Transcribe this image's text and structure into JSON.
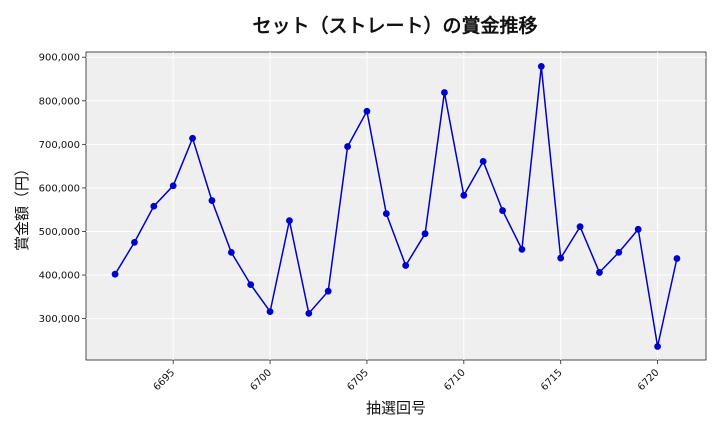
{
  "chart_data": {
    "type": "line",
    "title": "セット（ストレート）の賞金推移",
    "xlabel": "抽選回号",
    "ylabel": "賞金額（円）",
    "x": [
      6692,
      6693,
      6694,
      6695,
      6696,
      6697,
      6698,
      6699,
      6700,
      6701,
      6702,
      6703,
      6704,
      6705,
      6706,
      6707,
      6708,
      6709,
      6710,
      6711,
      6712,
      6713,
      6714,
      6715,
      6716,
      6717,
      6718,
      6719,
      6720,
      6721
    ],
    "series": [
      {
        "values": [
          402000,
          475000,
          558000,
          605000,
          714000,
          571000,
          452000,
          378000,
          316000,
          525000,
          312000,
          363000,
          695000,
          776000,
          541000,
          422000,
          495000,
          819000,
          583000,
          661000,
          548000,
          459000,
          879000,
          439000,
          511000,
          406000,
          452000,
          505000,
          236000,
          438000
        ],
        "color": "#0000cc"
      }
    ],
    "xlim": [
      6690.5,
      6722.5
    ],
    "ylim": [
      205000,
      912000
    ],
    "xticks": [
      6695,
      6700,
      6705,
      6710,
      6715,
      6720
    ],
    "xtick_labels": [
      "6695",
      "6700",
      "6705",
      "6710",
      "6715",
      "6720"
    ],
    "yticks": [
      300000,
      400000,
      500000,
      600000,
      700000,
      800000,
      900000
    ],
    "ytick_labels": [
      "300,000",
      "400,000",
      "500,000",
      "600,000",
      "700,000",
      "800,000",
      "900,000"
    ],
    "grid": true,
    "background_color": "#efefef",
    "grid_color": "#ffffff"
  }
}
